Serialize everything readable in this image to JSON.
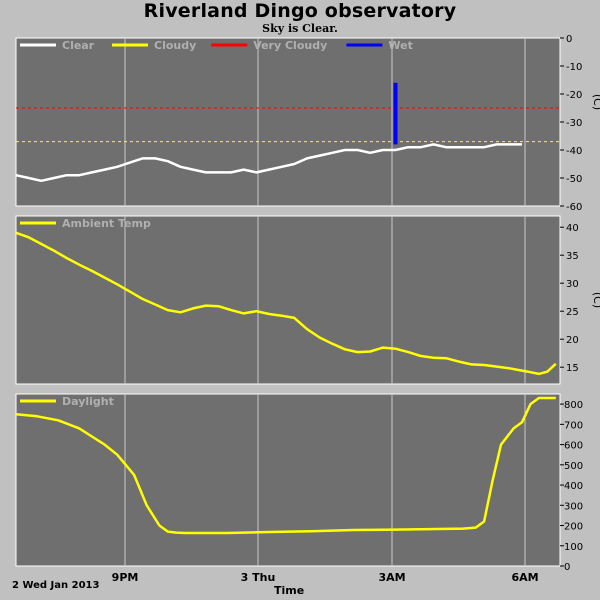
{
  "title": "Riverland Dingo observatory",
  "subtitle": "Sky is Clear.",
  "x_axis": {
    "start_label": "2 Wed Jan 2013",
    "title": "Time",
    "ticks": [
      "9PM",
      "3 Thu",
      "3AM",
      "6AM"
    ]
  },
  "colors": {
    "panel_bg": "#6f6f6f",
    "frame_bg": "#c0c0c0",
    "grid": "#c8c8c8",
    "clear": "#ffffff",
    "cloudy": "#ffff00",
    "very_cloudy": "#ff0000",
    "wet": "#0000ff"
  },
  "chart_data": [
    {
      "type": "line",
      "title": "",
      "ylabel": "(C)",
      "ylim": [
        -60,
        0
      ],
      "yticks": [
        0,
        -10,
        -20,
        -30,
        -40,
        -50,
        -60
      ],
      "legend": [
        "Clear",
        "Cloudy",
        "Very Cloudy",
        "Wet"
      ],
      "thresholds": [
        {
          "name": "Cloudy",
          "value": -37
        },
        {
          "name": "Very Cloudy",
          "value": -25
        }
      ],
      "series": [
        {
          "name": "Clear",
          "x": [
            0,
            0.3,
            0.6,
            0.9,
            1.2,
            1.5,
            1.8,
            2.1,
            2.4,
            2.6,
            2.8,
            3.0,
            3.3,
            3.6,
            3.9,
            4.2,
            4.5,
            4.8,
            5.1,
            5.4,
            5.7,
            6.0,
            6.3,
            6.6,
            6.9,
            7.2,
            7.5,
            7.8,
            8.1,
            8.4,
            8.7,
            9.0,
            9.3,
            9.6,
            9.9,
            10.2,
            10.5,
            10.8,
            11.1,
            11.4,
            11.7,
            12.0
          ],
          "y": [
            -49,
            -50,
            -51,
            -50,
            -49,
            -49,
            -48,
            -47,
            -46,
            -45,
            -44,
            -43,
            -43,
            -44,
            -46,
            -47,
            -48,
            -48,
            -48,
            -47,
            -48,
            -47,
            -46,
            -45,
            -43,
            -42,
            -41,
            -40,
            -40,
            -41,
            -40,
            -40,
            -39,
            -39,
            -38,
            -39,
            -39,
            -39,
            -39,
            -38,
            -38,
            -38
          ]
        },
        {
          "name": "Wet",
          "x": [
            9.0,
            9.0,
            9.0
          ],
          "y": [
            -38,
            -27,
            -16
          ]
        }
      ]
    },
    {
      "type": "line",
      "title": "",
      "ylabel": "(C)",
      "ylim": [
        12,
        42
      ],
      "yticks": [
        15,
        20,
        25,
        30,
        35,
        40
      ],
      "legend": [
        "Ambient Temp"
      ],
      "series": [
        {
          "name": "Ambient Temp",
          "x": [
            0,
            0.3,
            0.6,
            0.9,
            1.2,
            1.5,
            1.8,
            2.1,
            2.4,
            2.7,
            3.0,
            3.3,
            3.6,
            3.9,
            4.2,
            4.5,
            4.8,
            5.1,
            5.4,
            5.7,
            6.0,
            6.3,
            6.6,
            6.9,
            7.2,
            7.5,
            7.8,
            8.1,
            8.4,
            8.7,
            9.0,
            9.3,
            9.6,
            9.9,
            10.2,
            10.5,
            10.8,
            11.1,
            11.4,
            11.7,
            12.0
          ],
          "y": [
            39,
            38.2,
            37,
            35.8,
            34.5,
            33.3,
            32.2,
            31,
            29.8,
            28.5,
            27.2,
            26.2,
            25.2,
            24.8,
            25.5,
            26,
            25.9,
            25.2,
            24.6,
            25,
            24.5,
            24.2,
            23.8,
            21.8,
            20.3,
            19.2,
            18.2,
            17.7,
            17.8,
            18.5,
            18.3,
            17.7,
            17,
            16.7,
            16.6,
            16,
            15.5,
            15.4,
            15.1,
            14.8,
            14.4
          ]
        }
      ],
      "x_extra": [
        12.2,
        12.4,
        12.6,
        12.8
      ],
      "y_extra": [
        14.1,
        13.8,
        14.2,
        15.6
      ]
    },
    {
      "type": "line",
      "title": "",
      "ylabel": "",
      "ylim": [
        0,
        850
      ],
      "yticks": [
        0,
        100,
        200,
        300,
        400,
        500,
        600,
        700,
        800
      ],
      "legend": [
        "Daylight"
      ],
      "series": [
        {
          "name": "Daylight",
          "x": [
            0,
            0.5,
            1.0,
            1.5,
            1.8,
            2.1,
            2.4,
            2.8,
            3.1,
            3.4,
            3.6,
            3.8,
            4.0,
            4.5,
            5,
            6,
            7,
            8,
            9,
            10,
            10.6,
            10.9,
            11.1,
            11.3,
            11.5,
            11.8,
            12.0,
            12.2,
            12.4,
            12.6,
            12.8
          ],
          "y": [
            750,
            740,
            720,
            680,
            640,
            600,
            550,
            450,
            300,
            200,
            170,
            165,
            163,
            163,
            163,
            168,
            172,
            178,
            180,
            183,
            185,
            190,
            220,
            420,
            600,
            680,
            710,
            800,
            830,
            830,
            830
          ]
        }
      ]
    }
  ]
}
